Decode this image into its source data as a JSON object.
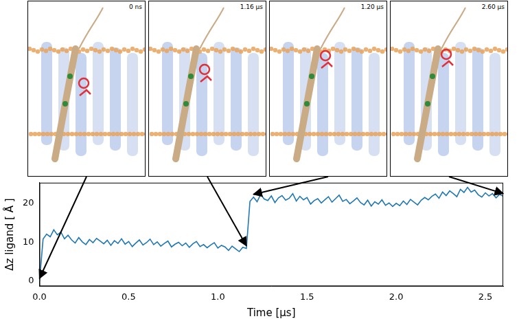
{
  "chart_data": {
    "type": "line",
    "x_label": "Time [µs]",
    "y_label": "Δz ligand [ Å ]",
    "color": "#1f77b4",
    "grid": false,
    "xlim": [
      0,
      2.6
    ],
    "xticks": [
      {
        "value": 0,
        "label": "0.0"
      },
      0.5,
      {
        "value": 1,
        "label": "1.0"
      },
      1.5,
      {
        "value": 2,
        "label": "2.0"
      },
      2.5
    ],
    "ylim": [
      -1.3,
      25.3
    ],
    "yticks": [
      0,
      10,
      20
    ],
    "x": [
      0.0,
      0.02,
      0.04,
      0.06,
      0.08,
      0.1,
      0.12,
      0.14,
      0.16,
      0.18,
      0.2,
      0.22,
      0.24,
      0.26,
      0.28,
      0.3,
      0.32,
      0.34,
      0.36,
      0.38,
      0.4,
      0.42,
      0.44,
      0.46,
      0.48,
      0.5,
      0.52,
      0.54,
      0.56,
      0.58,
      0.6,
      0.62,
      0.64,
      0.66,
      0.68,
      0.7,
      0.72,
      0.74,
      0.76,
      0.78,
      0.8,
      0.82,
      0.84,
      0.86,
      0.88,
      0.9,
      0.92,
      0.94,
      0.96,
      0.98,
      1.0,
      1.02,
      1.04,
      1.06,
      1.08,
      1.1,
      1.12,
      1.14,
      1.16,
      1.18,
      1.2,
      1.22,
      1.24,
      1.26,
      1.28,
      1.3,
      1.32,
      1.34,
      1.36,
      1.38,
      1.4,
      1.42,
      1.44,
      1.46,
      1.48,
      1.5,
      1.52,
      1.54,
      1.56,
      1.58,
      1.6,
      1.62,
      1.64,
      1.66,
      1.68,
      1.7,
      1.72,
      1.74,
      1.76,
      1.78,
      1.8,
      1.82,
      1.84,
      1.86,
      1.88,
      1.9,
      1.92,
      1.94,
      1.96,
      1.98,
      2.0,
      2.02,
      2.04,
      2.06,
      2.08,
      2.1,
      2.12,
      2.14,
      2.16,
      2.18,
      2.2,
      2.22,
      2.24,
      2.26,
      2.28,
      2.3,
      2.32,
      2.34,
      2.36,
      2.38,
      2.4,
      2.42,
      2.44,
      2.46,
      2.48,
      2.5,
      2.52,
      2.54,
      2.56,
      2.58,
      2.6
    ],
    "values": [
      0,
      10.8,
      12.1,
      11.4,
      13.2,
      11.9,
      12.6,
      10.9,
      11.8,
      10.6,
      9.8,
      11.2,
      10.1,
      9.4,
      10.7,
      9.9,
      11.0,
      10.3,
      9.6,
      10.5,
      9.2,
      10.4,
      9.7,
      10.9,
      9.5,
      10.2,
      8.9,
      9.8,
      10.6,
      9.3,
      9.9,
      10.8,
      9.4,
      10.1,
      9.0,
      9.7,
      10.3,
      8.8,
      9.5,
      10.0,
      9.1,
      9.8,
      8.7,
      9.6,
      10.2,
      8.9,
      9.4,
      8.6,
      9.3,
      9.9,
      8.5,
      9.2,
      8.8,
      7.9,
      9.0,
      8.3,
      7.6,
      8.7,
      8.4,
      20.5,
      21.6,
      20.4,
      22.3,
      21.1,
      20.7,
      21.9,
      20.2,
      21.4,
      22.0,
      20.8,
      21.3,
      22.5,
      20.6,
      21.8,
      20.9,
      21.5,
      19.8,
      20.7,
      21.2,
      20.1,
      20.9,
      21.7,
      20.3,
      21.2,
      22.1,
      20.5,
      21.0,
      19.9,
      20.6,
      21.4,
      20.2,
      19.6,
      20.8,
      19.3,
      20.4,
      19.8,
      20.9,
      19.5,
      20.1,
      19.2,
      20.0,
      19.4,
      20.6,
      19.7,
      21.0,
      20.3,
      19.6,
      20.8,
      21.5,
      20.9,
      21.8,
      22.4,
      21.3,
      22.9,
      22.0,
      23.2,
      22.5,
      21.7,
      23.6,
      22.8,
      24.1,
      22.9,
      23.4,
      22.2,
      21.6,
      22.7,
      21.9,
      22.5,
      21.4,
      22.3,
      21.8
    ]
  },
  "snapshots": {
    "labels": [
      "0 ns",
      "1.16 µs",
      "1.20 µs",
      "2.60 µs"
    ],
    "times": [
      0,
      1.16,
      1.2,
      2.6
    ]
  }
}
